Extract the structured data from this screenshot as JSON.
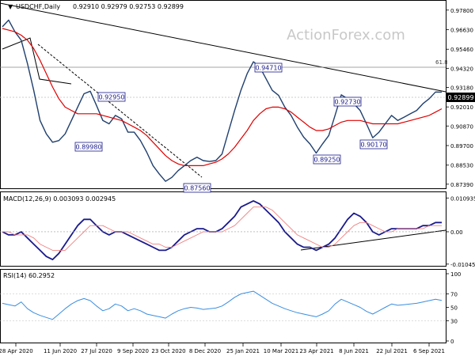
{
  "header": {
    "symbol_tf": "USDCHF,Daily",
    "ohlc": "0.92910 0.92979 0.92753 0.92899"
  },
  "watermark": "ActionForex.com",
  "macd_label": "MACD(12,26,9) 0.003093 0.002945",
  "rsi_label": "RSI(14) 60.2952",
  "fib_label": "61.8",
  "colors": {
    "price": "#1f3f6e",
    "ma": "#e00000",
    "macd": "#1a1a8c",
    "signal": "#f08080",
    "rsi": "#3a8ee0",
    "trendline": "#000000",
    "current_price_tag": "#000000"
  },
  "chart_data": [
    {
      "type": "line",
      "panel": "price",
      "y_ticks": [
        "0.97800",
        "0.96630",
        "0.95460",
        "0.94320",
        "0.93180",
        "0.92010",
        "0.90870",
        "0.89700",
        "0.88530",
        "0.87390"
      ],
      "ylim": [
        0.8724,
        0.9812
      ],
      "current_price": "0.92899",
      "series": [
        {
          "values": [
            0.968,
            0.972,
            0.965,
            0.96,
            0.946,
            0.93,
            0.912,
            0.904,
            0.899,
            0.9,
            0.904,
            0.912,
            0.92,
            0.928,
            0.9295,
            0.921,
            0.912,
            0.91,
            0.915,
            0.913,
            0.905,
            0.905,
            0.9,
            0.893,
            0.885,
            0.88,
            0.8756,
            0.878,
            0.882,
            0.885,
            0.888,
            0.89,
            0.888,
            0.8875,
            0.888,
            0.892,
            0.905,
            0.918,
            0.93,
            0.94,
            0.9471,
            0.944,
            0.937,
            0.93,
            0.927,
            0.92,
            0.915,
            0.908,
            0.902,
            0.898,
            0.8925,
            0.898,
            0.903,
            0.915,
            0.9273,
            0.925,
            0.922,
            0.918,
            0.91,
            0.9017,
            0.905,
            0.91,
            0.915,
            0.912,
            0.914,
            0.916,
            0.918,
            0.922,
            0.925,
            0.929,
            0.92899
          ]
        },
        {
          "values": [
            0.967,
            0.966,
            0.965,
            0.963,
            0.96,
            0.955,
            0.948,
            0.94,
            0.932,
            0.925,
            0.92,
            0.918,
            0.916,
            0.916,
            0.916,
            0.916,
            0.915,
            0.914,
            0.913,
            0.912,
            0.91,
            0.908,
            0.906,
            0.903,
            0.899,
            0.895,
            0.891,
            0.888,
            0.886,
            0.885,
            0.885,
            0.885,
            0.885,
            0.886,
            0.887,
            0.889,
            0.892,
            0.896,
            0.901,
            0.906,
            0.912,
            0.916,
            0.919,
            0.92,
            0.92,
            0.919,
            0.917,
            0.914,
            0.911,
            0.908,
            0.906,
            0.906,
            0.907,
            0.909,
            0.911,
            0.912,
            0.912,
            0.912,
            0.911,
            0.91,
            0.91,
            0.91,
            0.91,
            0.91,
            0.911,
            0.912,
            0.913,
            0.914,
            0.915,
            0.917,
            0.919
          ]
        }
      ],
      "annotations": [
        "0.94710",
        "0.92950",
        "0.92730",
        "0.89980",
        "0.90170",
        "0.89250",
        "0.87560"
      ]
    },
    {
      "type": "line",
      "panel": "macd",
      "y_ticks": [
        "0.010935",
        "0.00",
        "-0.010459"
      ],
      "ylim": [
        -0.0105,
        0.011
      ],
      "series": [
        {
          "values": [
            0.0,
            -0.001,
            -0.001,
            0.0,
            -0.002,
            -0.004,
            -0.006,
            -0.008,
            -0.009,
            -0.007,
            -0.004,
            -0.001,
            0.002,
            0.004,
            0.004,
            0.002,
            0.0,
            -0.001,
            0.0,
            0.0,
            -0.001,
            -0.002,
            -0.003,
            -0.004,
            -0.005,
            -0.006,
            -0.006,
            -0.005,
            -0.003,
            -0.001,
            0.0,
            0.001,
            0.001,
            0.0,
            0.0,
            0.001,
            0.003,
            0.005,
            0.008,
            0.009,
            0.01,
            0.009,
            0.007,
            0.005,
            0.003,
            0.0,
            -0.002,
            -0.004,
            -0.005,
            -0.005,
            -0.006,
            -0.005,
            -0.004,
            -0.002,
            0.001,
            0.004,
            0.006,
            0.005,
            0.003,
            0.0,
            -0.001,
            0.0,
            0.001,
            0.001,
            0.001,
            0.001,
            0.001,
            0.002,
            0.002,
            0.003,
            0.003
          ]
        },
        {
          "values": [
            0.0,
            0.0,
            -0.001,
            -0.001,
            -0.001,
            -0.002,
            -0.004,
            -0.005,
            -0.006,
            -0.006,
            -0.006,
            -0.004,
            -0.002,
            0.0,
            0.002,
            0.002,
            0.002,
            0.001,
            0.0,
            0.0,
            0.0,
            -0.001,
            -0.002,
            -0.003,
            -0.004,
            -0.004,
            -0.005,
            -0.005,
            -0.004,
            -0.003,
            -0.002,
            -0.001,
            0.0,
            0.0,
            0.0,
            0.0,
            0.001,
            0.002,
            0.004,
            0.006,
            0.008,
            0.008,
            0.008,
            0.007,
            0.005,
            0.003,
            0.001,
            -0.001,
            -0.002,
            -0.003,
            -0.004,
            -0.005,
            -0.005,
            -0.004,
            -0.002,
            0.0,
            0.002,
            0.003,
            0.003,
            0.002,
            0.001,
            0.0,
            0.0,
            0.001,
            0.001,
            0.001,
            0.001,
            0.001,
            0.002,
            0.002,
            0.002
          ]
        }
      ]
    },
    {
      "type": "line",
      "panel": "rsi",
      "y_ticks": [
        "100",
        "70",
        "50",
        "30",
        "0"
      ],
      "ylim": [
        0,
        100
      ],
      "series": [
        {
          "values": [
            56,
            54,
            52,
            58,
            48,
            42,
            38,
            35,
            32,
            40,
            48,
            55,
            60,
            63,
            60,
            52,
            45,
            48,
            55,
            52,
            45,
            48,
            45,
            40,
            38,
            36,
            34,
            40,
            45,
            48,
            50,
            49,
            47,
            48,
            49,
            52,
            58,
            65,
            70,
            72,
            74,
            68,
            62,
            56,
            52,
            48,
            45,
            42,
            40,
            38,
            36,
            40,
            45,
            55,
            62,
            58,
            54,
            50,
            44,
            40,
            45,
            50,
            55,
            53,
            54,
            55,
            56,
            58,
            60,
            62,
            60.3
          ]
        }
      ]
    }
  ],
  "x_axis": {
    "labels": [
      "28 Apr 2020",
      "11 Jun 2020",
      "27 Jul 2020",
      "9 Sep 2020",
      "23 Oct 2020",
      "8 Dec 2020",
      "25 Jan 2021",
      "10 Mar 2021",
      "23 Apr 2021",
      "8 Jun 2021",
      "22 Jul 2021",
      "6 Sep 2021"
    ]
  }
}
